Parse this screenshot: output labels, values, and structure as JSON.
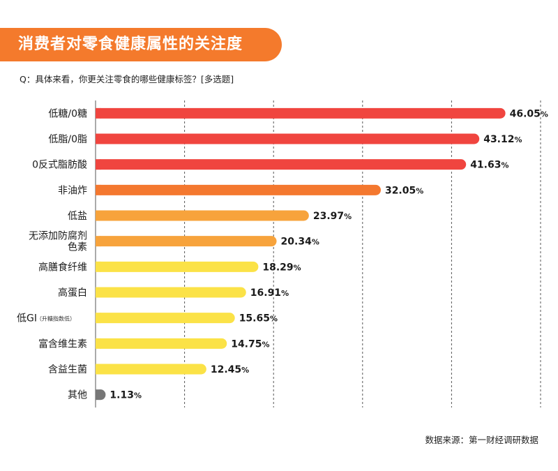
{
  "header": {
    "title": "消费者对零食健康属性的关注度",
    "question": "Q：具体来看，你更关注零食的哪些健康标签？[多选题]"
  },
  "footer": {
    "source": "数据来源：第一财经调研数据"
  },
  "chart_data": {
    "type": "bar",
    "orientation": "horizontal",
    "categories": [
      "低糖/0糖",
      "低脂/0脂",
      "0反式脂肪酸",
      "非油炸",
      "低盐",
      "无添加防腐剂色素",
      "高膳食纤维",
      "高蛋白",
      "低GI（升糖指数低）",
      "富含维生素",
      "含益生菌",
      "其他"
    ],
    "category_lines": [
      [
        "低糖/0糖"
      ],
      [
        "低脂/0脂"
      ],
      [
        "0反式脂肪酸"
      ],
      [
        "非油炸"
      ],
      [
        "低盐"
      ],
      [
        "无添加防腐剂",
        "色素"
      ],
      [
        "高膳食纤维"
      ],
      [
        "高蛋白"
      ],
      [
        "低GI"
      ],
      [
        "富含维生素"
      ],
      [
        "含益生菌"
      ],
      [
        "其他"
      ]
    ],
    "category_notes": [
      "",
      "",
      "",
      "",
      "",
      "",
      "",
      "",
      "（升糖指数低）",
      "",
      "",
      ""
    ],
    "values": [
      46.05,
      43.12,
      41.63,
      32.05,
      23.97,
      20.34,
      18.29,
      16.91,
      15.65,
      14.75,
      12.45,
      1.13
    ],
    "value_labels": [
      "46.05",
      "43.12",
      "41.63",
      "32.05",
      "23.97",
      "20.34",
      "18.29",
      "16.91",
      "15.65",
      "14.75",
      "12.45",
      "1.13"
    ],
    "unit": "%",
    "bar_colors": [
      "#f0453f",
      "#f0453f",
      "#f0453f",
      "#f4782f",
      "#f7a33c",
      "#f7a33c",
      "#fbe247",
      "#fbe247",
      "#fbe247",
      "#fbe247",
      "#fbe247",
      "#777777"
    ],
    "xlim": [
      0,
      50
    ],
    "x_gridlines": [
      10,
      20,
      30,
      40,
      50
    ],
    "grid": "vertical dashed",
    "xlabel": "",
    "ylabel": ""
  }
}
